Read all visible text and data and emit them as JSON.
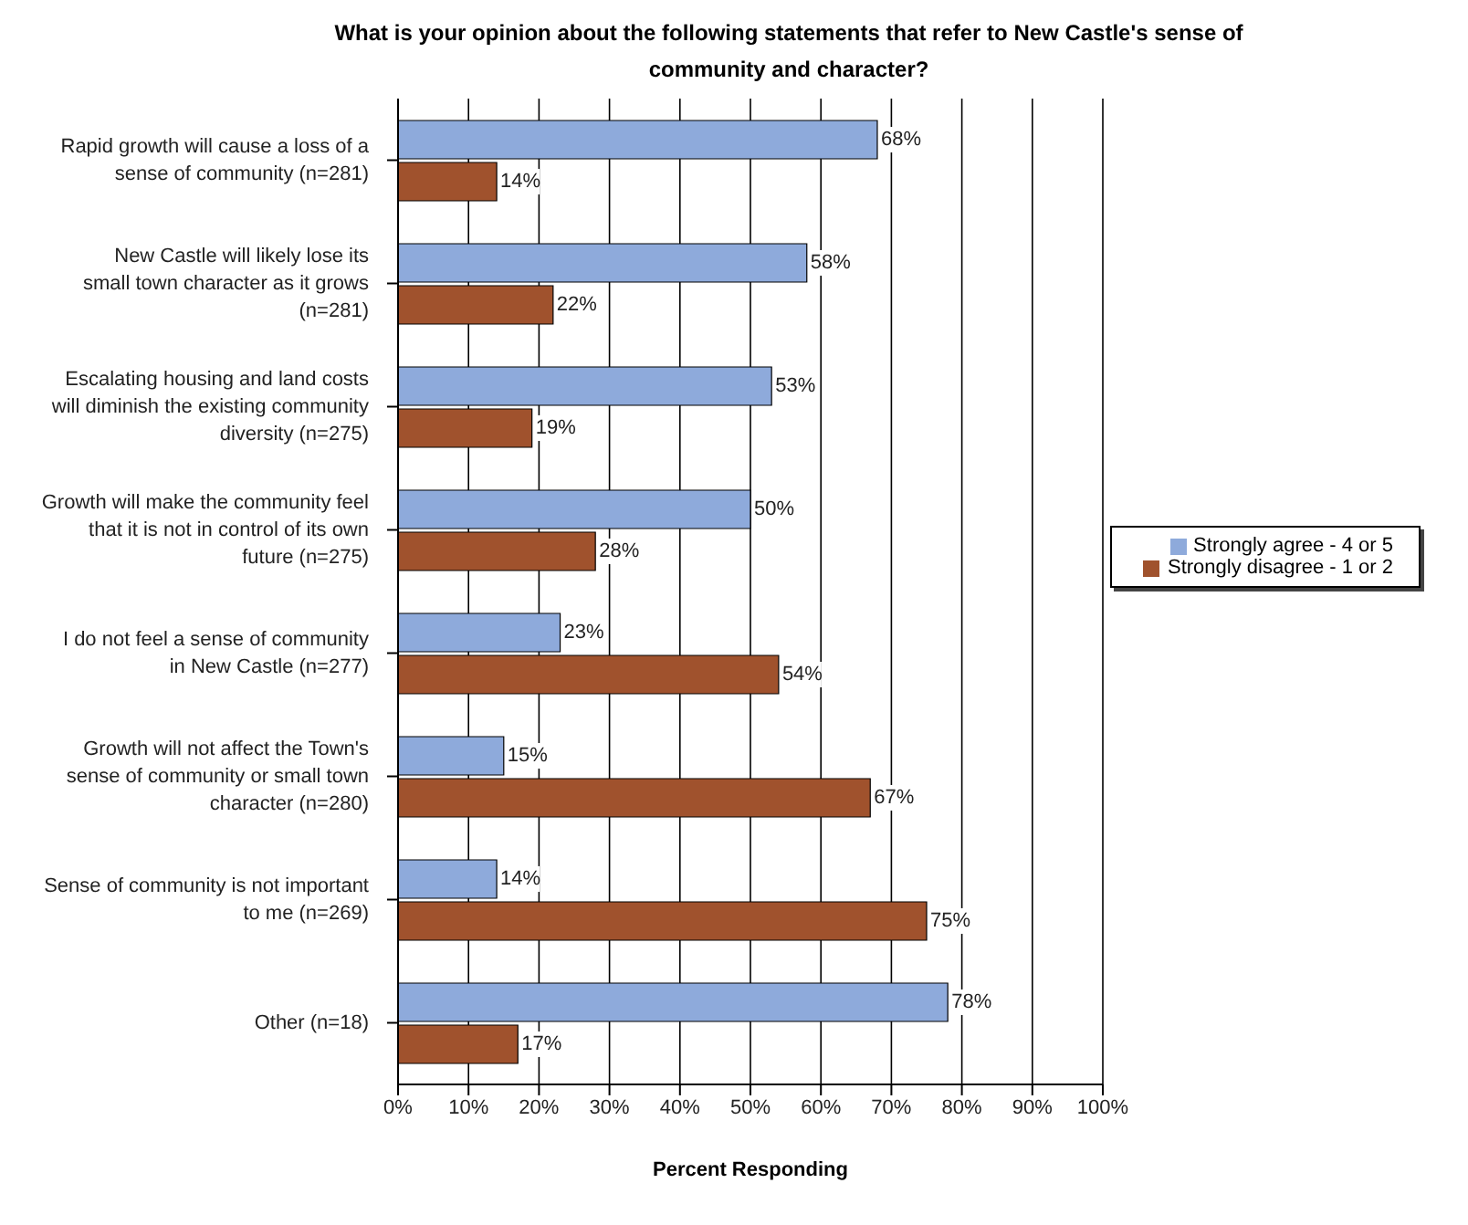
{
  "chart_data": {
    "type": "bar",
    "orientation": "horizontal",
    "title": "What is your opinion about the following statements that refer to New Castle's sense of community and character?",
    "xlabel": "Percent Responding",
    "categories": [
      "Rapid growth will cause a loss of a sense of community (n=281)",
      "New Castle will likely lose its small town character as it grows (n=281)",
      "Escalating housing and land costs will diminish the existing community diversity (n=275)",
      "Growth will make the community feel that it is not in control of its own future (n=275)",
      "I do not feel a sense of community in New Castle (n=277)",
      "Growth will not affect the Town's sense of community or small town character (n=280)",
      "Sense of community is not important to me (n=269)",
      "Other (n=18)"
    ],
    "series": [
      {
        "name": "Strongly agree - 4 or 5",
        "color": "#8eaadb",
        "values": [
          68,
          58,
          53,
          50,
          23,
          15,
          14,
          78
        ],
        "value_labels": [
          "68%",
          "58%",
          "53%",
          "50%",
          "23%",
          "15%",
          "14%",
          "78%"
        ]
      },
      {
        "name": "Strongly disagree - 1 or 2",
        "color": "#a0522d",
        "values": [
          14,
          22,
          19,
          28,
          54,
          67,
          75,
          17
        ],
        "value_labels": [
          "14%",
          "22%",
          "19%",
          "28%",
          "54%",
          "67%",
          "75%",
          "17%"
        ]
      }
    ],
    "xlim": [
      0,
      100
    ],
    "xticks": [
      {
        "value": 0,
        "label": "0%"
      },
      {
        "value": 10,
        "label": "10%"
      },
      {
        "value": 20,
        "label": "20%"
      },
      {
        "value": 30,
        "label": "30%"
      },
      {
        "value": 40,
        "label": "40%"
      },
      {
        "value": 50,
        "label": "50%"
      },
      {
        "value": 60,
        "label": "60%"
      },
      {
        "value": 70,
        "label": "70%"
      },
      {
        "value": 80,
        "label": "80%"
      },
      {
        "value": 90,
        "label": "90%"
      },
      {
        "value": 100,
        "label": "100%"
      }
    ],
    "grid": "x",
    "legend": "right"
  }
}
